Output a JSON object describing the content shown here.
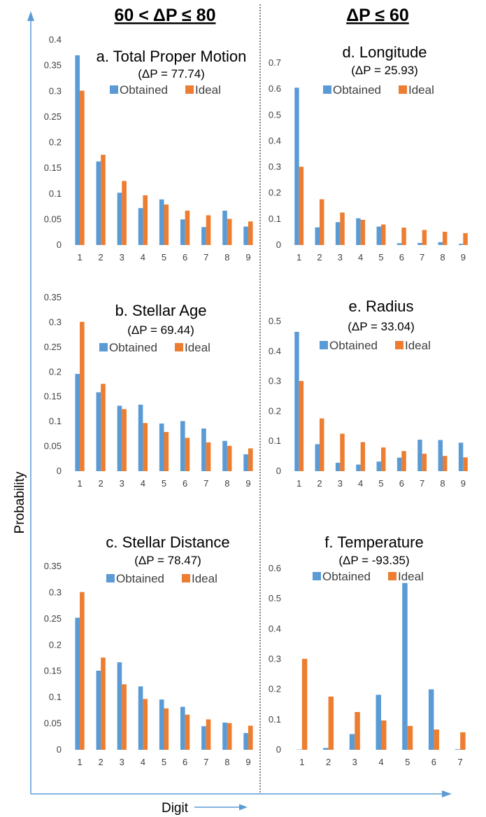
{
  "headers": {
    "left": "60 < ΔP ≤ 80",
    "right": "ΔP ≤ 60"
  },
  "axis_labels": {
    "y": "Probability",
    "x": "Digit"
  },
  "colors": {
    "obtained": "#5b9bd5",
    "ideal": "#ed7d31",
    "arrow": "#5b9bd5",
    "divider": "#404040"
  },
  "chart_data": [
    {
      "type": "bar",
      "title": "a.  Total Proper Motion",
      "subtitle": "(ΔP = 77.74)",
      "categories": [
        "1",
        "2",
        "3",
        "4",
        "5",
        "6",
        "7",
        "8",
        "9"
      ],
      "ylim": [
        0,
        0.4
      ],
      "yticks": [
        "0",
        "0.05",
        "0.1",
        "0.15",
        "0.2",
        "0.25",
        "0.3",
        "0.35",
        "0.4"
      ],
      "legend": "top",
      "series": [
        {
          "name": "Obtained",
          "values": [
            0.37,
            0.163,
            0.102,
            0.072,
            0.089,
            0.05,
            0.035,
            0.067,
            0.036
          ]
        },
        {
          "name": "Ideal",
          "values": [
            0.301,
            0.176,
            0.125,
            0.097,
            0.079,
            0.067,
            0.058,
            0.051,
            0.046
          ]
        }
      ]
    },
    {
      "type": "bar",
      "title": "d.  Longitude",
      "subtitle": "(ΔP = 25.93)",
      "categories": [
        "1",
        "2",
        "3",
        "4",
        "5",
        "6",
        "7",
        "8",
        "9"
      ],
      "ylim": [
        0,
        0.7
      ],
      "yticks": [
        "0",
        "0.1",
        "0.2",
        "0.3",
        "0.4",
        "0.5",
        "0.6",
        "0.7"
      ],
      "legend": "top",
      "series": [
        {
          "name": "Obtained",
          "values": [
            0.605,
            0.068,
            0.088,
            0.103,
            0.071,
            0.007,
            0.008,
            0.011,
            0.005
          ]
        },
        {
          "name": "Ideal",
          "values": [
            0.301,
            0.176,
            0.125,
            0.097,
            0.079,
            0.067,
            0.058,
            0.051,
            0.046
          ]
        }
      ]
    },
    {
      "type": "bar",
      "title": "b.  Stellar Age",
      "subtitle": "(ΔP = 69.44)",
      "categories": [
        "1",
        "2",
        "3",
        "4",
        "5",
        "6",
        "7",
        "8",
        "9"
      ],
      "ylim": [
        0,
        0.35
      ],
      "yticks": [
        "0",
        "0.05",
        "0.1",
        "0.15",
        "0.2",
        "0.25",
        "0.3",
        "0.35"
      ],
      "legend": "top",
      "series": [
        {
          "name": "Obtained",
          "values": [
            0.196,
            0.159,
            0.132,
            0.134,
            0.096,
            0.101,
            0.086,
            0.061,
            0.034
          ]
        },
        {
          "name": "Ideal",
          "values": [
            0.301,
            0.176,
            0.125,
            0.097,
            0.079,
            0.067,
            0.058,
            0.051,
            0.046
          ]
        }
      ]
    },
    {
      "type": "bar",
      "title": "e.  Radius",
      "subtitle": "(ΔP = 33.04)",
      "categories": [
        "1",
        "2",
        "3",
        "4",
        "5",
        "6",
        "7",
        "8",
        "9"
      ],
      "ylim": [
        0,
        0.5
      ],
      "yticks": [
        "0",
        "0.1",
        "0.2",
        "0.3",
        "0.4",
        "0.5"
      ],
      "legend": "top",
      "series": [
        {
          "name": "Obtained",
          "values": [
            0.465,
            0.09,
            0.028,
            0.022,
            0.032,
            0.045,
            0.105,
            0.104,
            0.095
          ]
        },
        {
          "name": "Ideal",
          "values": [
            0.301,
            0.176,
            0.125,
            0.097,
            0.079,
            0.067,
            0.058,
            0.051,
            0.046
          ]
        }
      ]
    },
    {
      "type": "bar",
      "title": "c.  Stellar Distance",
      "subtitle": "(ΔP = 78.47)",
      "categories": [
        "1",
        "2",
        "3",
        "4",
        "5",
        "6",
        "7",
        "8",
        "9"
      ],
      "ylim": [
        0,
        0.35
      ],
      "yticks": [
        "0",
        "0.05",
        "0.1",
        "0.15",
        "0.2",
        "0.25",
        "0.3",
        "0.35"
      ],
      "legend": "top",
      "series": [
        {
          "name": "Obtained",
          "values": [
            0.252,
            0.151,
            0.167,
            0.121,
            0.096,
            0.082,
            0.045,
            0.052,
            0.032
          ]
        },
        {
          "name": "Ideal",
          "values": [
            0.301,
            0.176,
            0.125,
            0.097,
            0.079,
            0.067,
            0.058,
            0.051,
            0.046
          ]
        }
      ]
    },
    {
      "type": "bar",
      "title": "f.  Temperature",
      "subtitle": "(ΔP = -93.35)",
      "categories": [
        "1",
        "2",
        "3",
        "4",
        "5",
        "6",
        "7"
      ],
      "ylim": [
        0,
        0.6
      ],
      "yticks": [
        "0",
        "0.1",
        "0.2",
        "0.3",
        "0.4",
        "0.5",
        "0.6"
      ],
      "legend": "top",
      "series": [
        {
          "name": "Obtained",
          "values": [
            0.001,
            0.006,
            0.052,
            0.182,
            0.552,
            0.2,
            0.002
          ]
        },
        {
          "name": "Ideal",
          "values": [
            0.301,
            0.176,
            0.125,
            0.097,
            0.079,
            0.067,
            0.058
          ]
        }
      ]
    }
  ]
}
